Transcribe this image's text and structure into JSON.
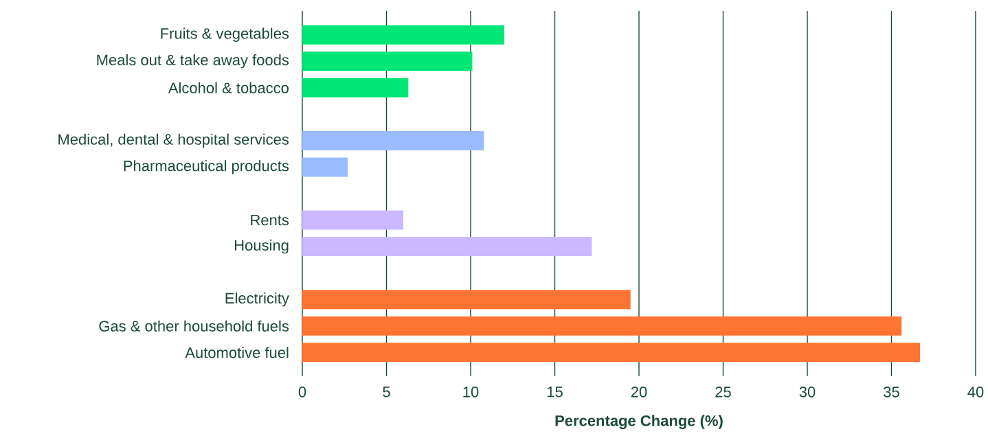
{
  "chart_data": {
    "type": "bar",
    "orientation": "horizontal",
    "categories": [
      "Fruits & vegetables",
      "Meals out & take away foods",
      "Alcohol & tobacco",
      null,
      "Medical, dental & hospital services",
      "Pharmaceutical products",
      null,
      "Rents",
      "Housing",
      null,
      "Electricity",
      "Gas & other household fuels",
      "Automotive fuel"
    ],
    "values": [
      12.0,
      10.1,
      6.3,
      null,
      10.8,
      2.7,
      null,
      6.0,
      17.2,
      null,
      19.5,
      35.6,
      36.7
    ],
    "colors": [
      "#00e676",
      "#00e676",
      "#00e676",
      null,
      "#99bbff",
      "#99bbff",
      null,
      "#ccb8ff",
      "#ccb8ff",
      null,
      "#ff7433",
      "#ff7433",
      "#ff7433"
    ],
    "xlabel": "Percentage Change (%)",
    "xlim": [
      0,
      40
    ],
    "xticks": [
      0,
      5,
      10,
      15,
      20,
      25,
      30,
      35,
      40
    ],
    "grid": "x"
  }
}
